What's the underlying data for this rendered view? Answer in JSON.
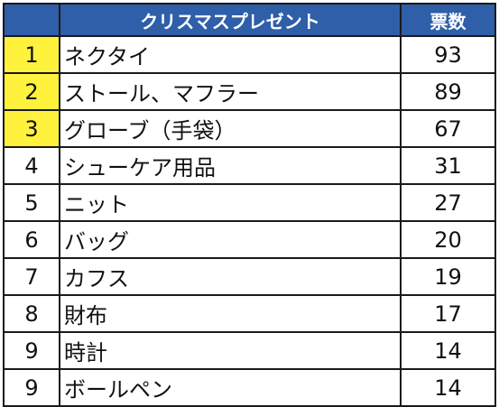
{
  "table": {
    "header": {
      "item": "クリスマスプレゼント",
      "votes": "票数"
    },
    "highlight_color": "#fff23d",
    "header_color": "#2e5fa8",
    "rows": [
      {
        "rank": "1",
        "item": "ネクタイ",
        "votes": "93",
        "highlight": true
      },
      {
        "rank": "2",
        "item": "ストール、マフラー",
        "votes": "89",
        "highlight": true
      },
      {
        "rank": "3",
        "item": "グローブ（手袋）",
        "votes": "67",
        "highlight": true
      },
      {
        "rank": "4",
        "item": "シューケア用品",
        "votes": "31",
        "highlight": false
      },
      {
        "rank": "5",
        "item": "ニット",
        "votes": "27",
        "highlight": false
      },
      {
        "rank": "6",
        "item": "バッグ",
        "votes": "20",
        "highlight": false
      },
      {
        "rank": "7",
        "item": "カフス",
        "votes": "19",
        "highlight": false
      },
      {
        "rank": "8",
        "item": "財布",
        "votes": "17",
        "highlight": false
      },
      {
        "rank": "9",
        "item": "時計",
        "votes": "14",
        "highlight": false
      },
      {
        "rank": "9",
        "item": "ボールペン",
        "votes": "14",
        "highlight": false
      }
    ]
  }
}
